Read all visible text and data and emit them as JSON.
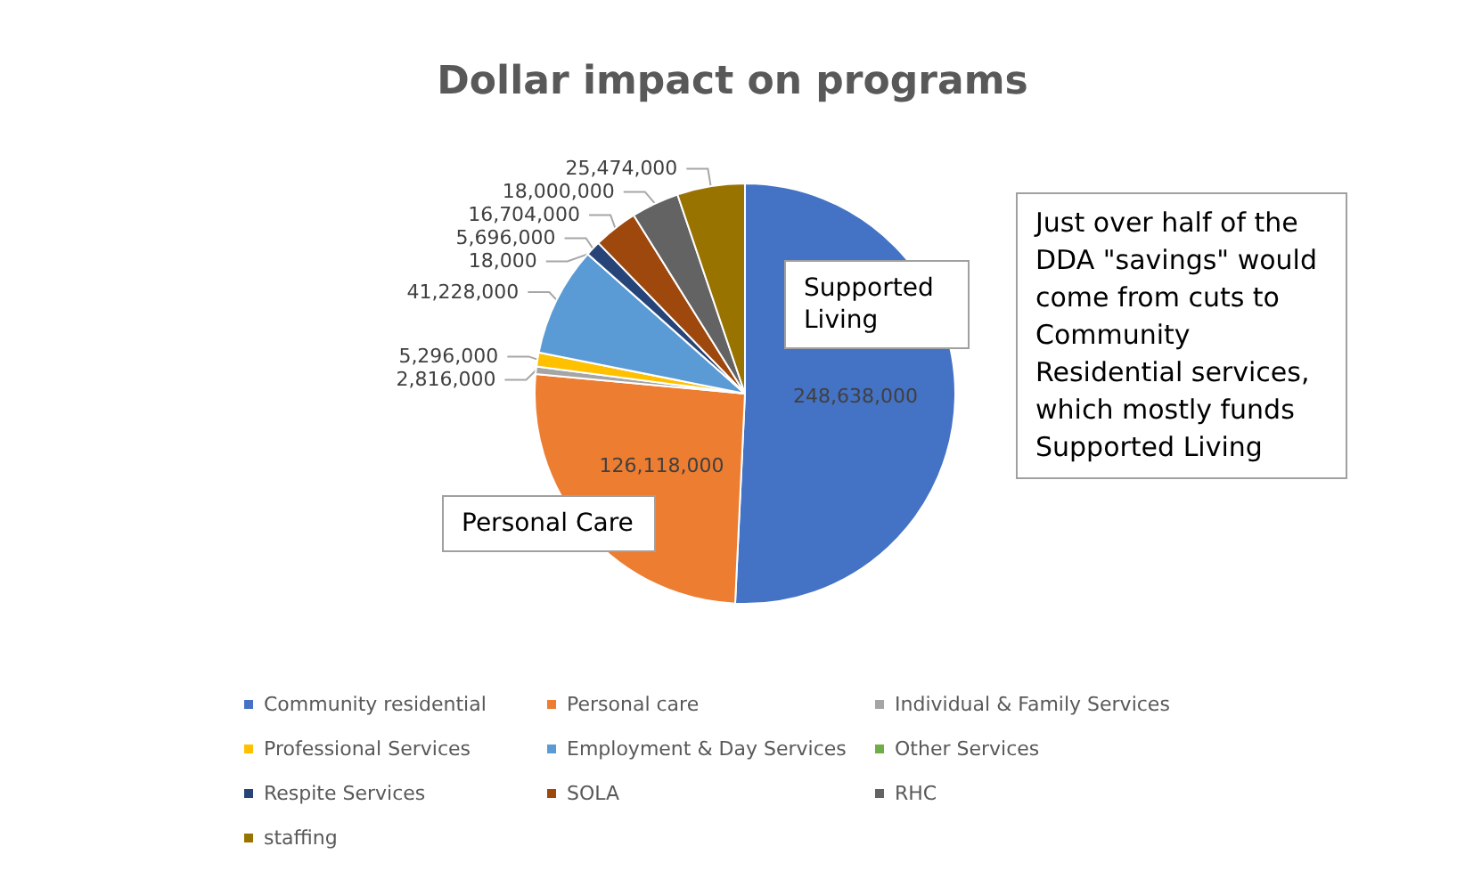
{
  "chart_data": {
    "type": "pie",
    "title": "Dollar impact on programs",
    "categories": [
      "Community residential",
      "Personal care",
      "Individual & Family Services",
      "Professional Services",
      "Employment & Day Services",
      "Other Services",
      "Respite Services",
      "SOLA",
      "RHC",
      "staffing"
    ],
    "values": [
      248638000,
      126118000,
      2816000,
      5296000,
      41228000,
      18000,
      5696000,
      16704000,
      18000000,
      25474000
    ],
    "colors": [
      "#4472c4",
      "#ed7d31",
      "#a5a5a5",
      "#ffc000",
      "#5b9bd5",
      "#70ad47",
      "#264478",
      "#9e480e",
      "#636363",
      "#997300"
    ],
    "value_labels": [
      "248,638,000",
      "126,118,000",
      "2,816,000",
      "5,296,000",
      "41,228,000",
      "18,000",
      "5,696,000",
      "16,704,000",
      "18,000,000",
      "25,474,000"
    ],
    "legend": "bottom",
    "annotations": [
      "Supported Living",
      "Personal Care",
      "Just over half of the DDA \"savings\" would come from cuts to Community Residential services, which mostly funds Supported Living"
    ]
  }
}
